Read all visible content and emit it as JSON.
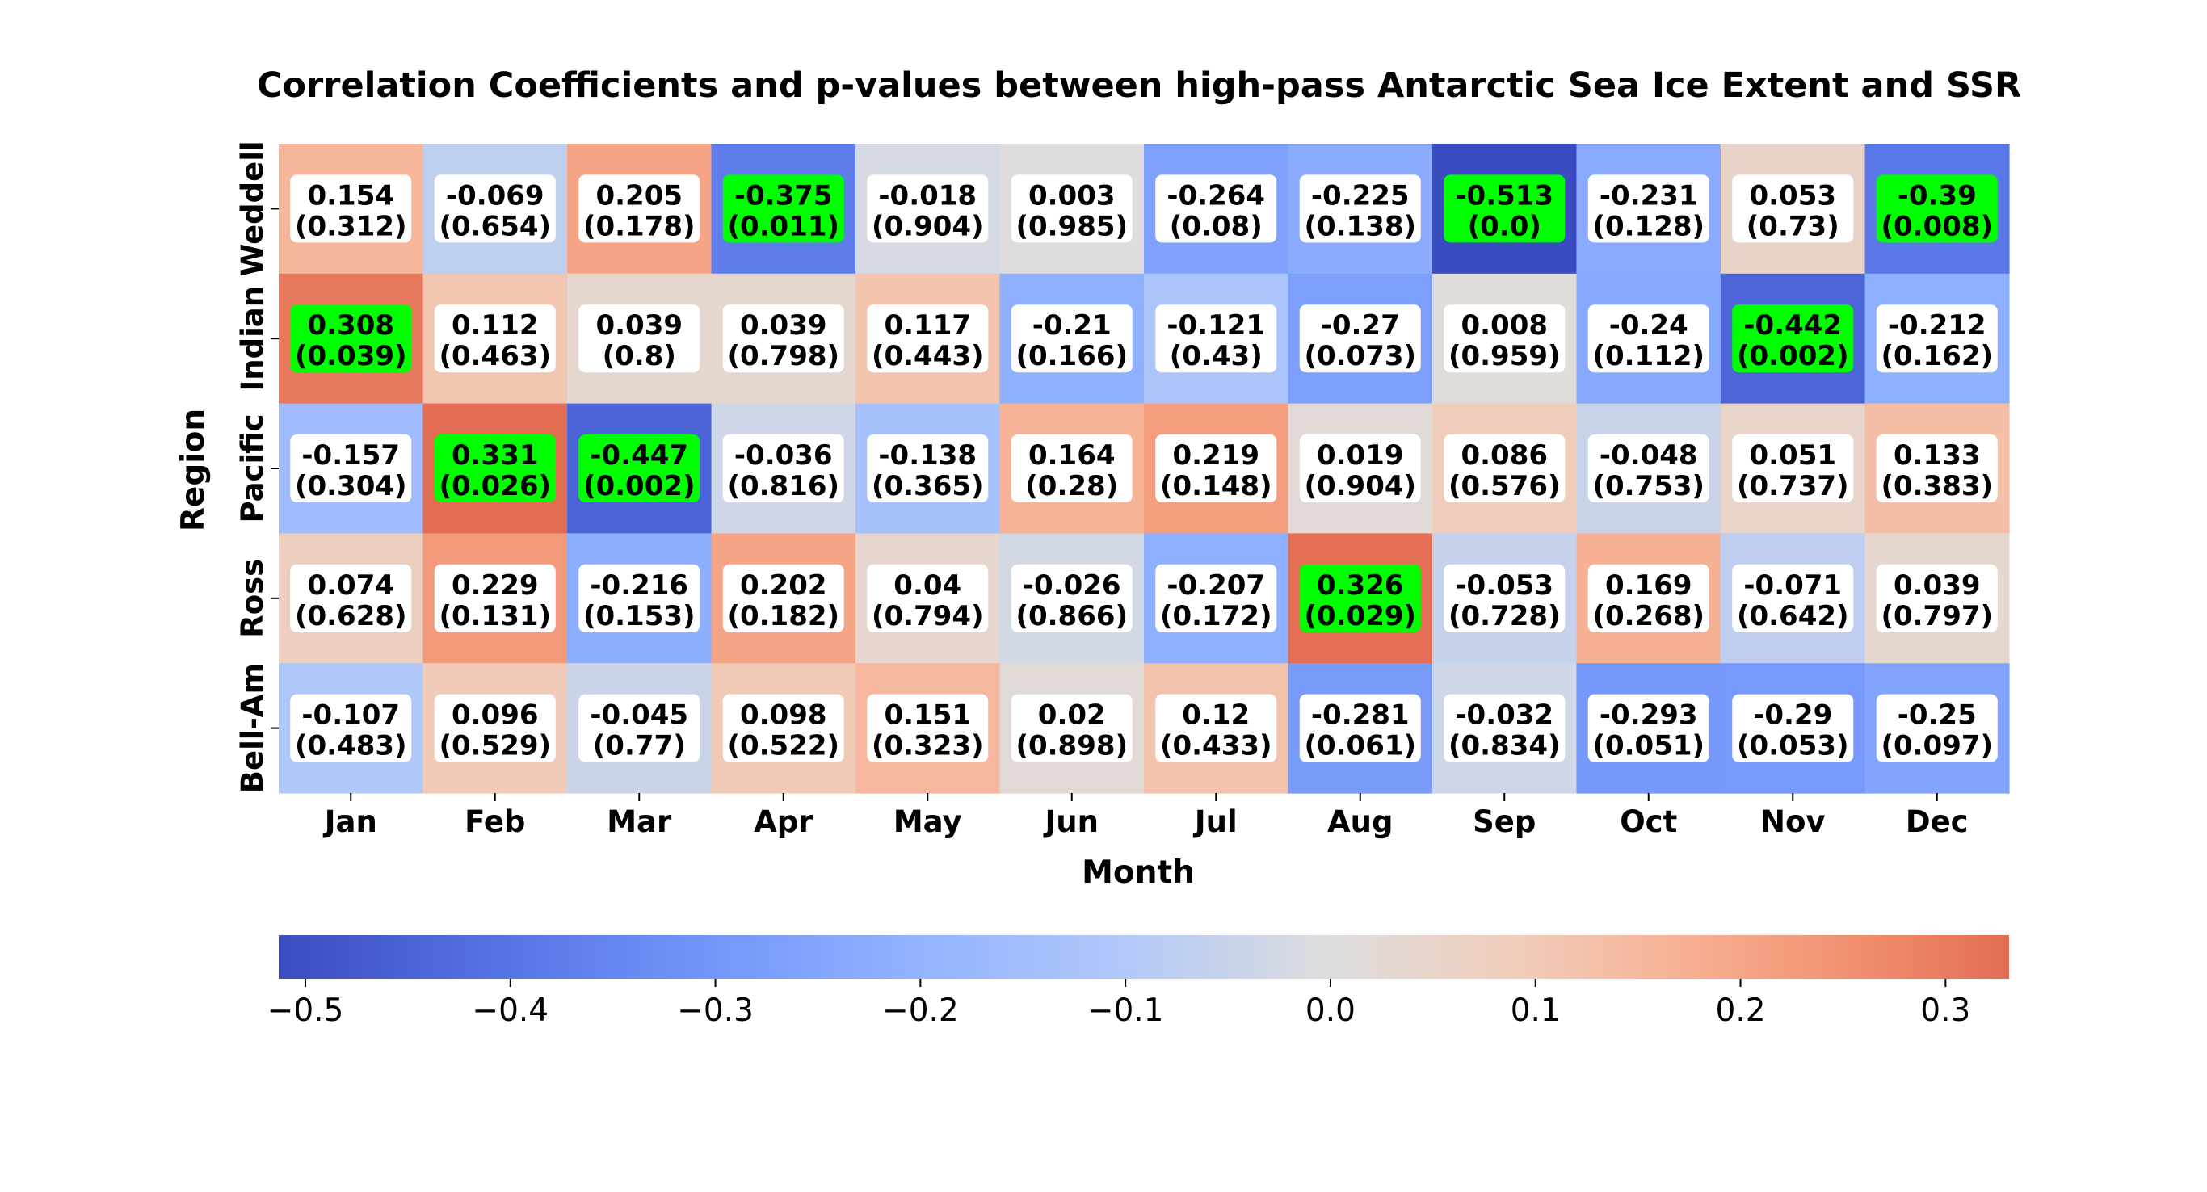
{
  "chart_data": {
    "type": "heatmap",
    "title": "Correlation Coefficients and p-values between high-pass Antarctic Sea Ice Extent and SSR",
    "xlabel": "Month",
    "ylabel": "Region",
    "x_categories": [
      "Jan",
      "Feb",
      "Mar",
      "Apr",
      "May",
      "Jun",
      "Jul",
      "Aug",
      "Sep",
      "Oct",
      "Nov",
      "Dec"
    ],
    "y_categories": [
      "Weddell",
      "Indian",
      "Pacific",
      "Ross",
      "Bell-Am"
    ],
    "values": [
      [
        0.154,
        -0.069,
        0.205,
        -0.375,
        -0.018,
        0.003,
        -0.264,
        -0.225,
        -0.513,
        -0.231,
        0.053,
        -0.39
      ],
      [
        0.308,
        0.112,
        0.039,
        0.039,
        0.117,
        -0.21,
        -0.121,
        -0.27,
        0.008,
        -0.24,
        -0.442,
        -0.212
      ],
      [
        -0.157,
        0.331,
        -0.447,
        -0.036,
        -0.138,
        0.164,
        0.219,
        0.019,
        0.086,
        -0.048,
        0.051,
        0.133
      ],
      [
        0.074,
        0.229,
        -0.216,
        0.202,
        0.04,
        -0.026,
        -0.207,
        0.326,
        -0.053,
        0.169,
        -0.071,
        0.039
      ],
      [
        -0.107,
        0.096,
        -0.045,
        0.098,
        0.151,
        0.02,
        0.12,
        -0.281,
        -0.032,
        -0.293,
        -0.29,
        -0.25
      ]
    ],
    "value_labels": [
      [
        "0.154",
        "-0.069",
        "0.205",
        "-0.375",
        "-0.018",
        "0.003",
        "-0.264",
        "-0.225",
        "-0.513",
        "-0.231",
        "0.053",
        "-0.39"
      ],
      [
        "0.308",
        "0.112",
        "0.039",
        "0.039",
        "0.117",
        "-0.21",
        "-0.121",
        "-0.27",
        "0.008",
        "-0.24",
        "-0.442",
        "-0.212"
      ],
      [
        "-0.157",
        "0.331",
        "-0.447",
        "-0.036",
        "-0.138",
        "0.164",
        "0.219",
        "0.019",
        "0.086",
        "-0.048",
        "0.051",
        "0.133"
      ],
      [
        "0.074",
        "0.229",
        "-0.216",
        "0.202",
        "0.04",
        "-0.026",
        "-0.207",
        "0.326",
        "-0.053",
        "0.169",
        "-0.071",
        "0.039"
      ],
      [
        "-0.107",
        "0.096",
        "-0.045",
        "0.098",
        "0.151",
        "0.02",
        "0.12",
        "-0.281",
        "-0.032",
        "-0.293",
        "-0.29",
        "-0.25"
      ]
    ],
    "p_value_labels": [
      [
        "(0.312)",
        "(0.654)",
        "(0.178)",
        "(0.011)",
        "(0.904)",
        "(0.985)",
        "(0.08)",
        "(0.138)",
        "(0.0)",
        "(0.128)",
        "(0.73)",
        "(0.008)"
      ],
      [
        "(0.039)",
        "(0.463)",
        "(0.8)",
        "(0.798)",
        "(0.443)",
        "(0.166)",
        "(0.43)",
        "(0.073)",
        "(0.959)",
        "(0.112)",
        "(0.002)",
        "(0.162)"
      ],
      [
        "(0.304)",
        "(0.026)",
        "(0.002)",
        "(0.816)",
        "(0.365)",
        "(0.28)",
        "(0.148)",
        "(0.904)",
        "(0.576)",
        "(0.753)",
        "(0.737)",
        "(0.383)"
      ],
      [
        "(0.628)",
        "(0.131)",
        "(0.153)",
        "(0.182)",
        "(0.794)",
        "(0.866)",
        "(0.172)",
        "(0.029)",
        "(0.728)",
        "(0.268)",
        "(0.642)",
        "(0.797)"
      ],
      [
        "(0.483)",
        "(0.529)",
        "(0.77)",
        "(0.522)",
        "(0.323)",
        "(0.898)",
        "(0.433)",
        "(0.061)",
        "(0.834)",
        "(0.051)",
        "(0.053)",
        "(0.097)"
      ]
    ],
    "p_values": [
      [
        0.312,
        0.654,
        0.178,
        0.011,
        0.904,
        0.985,
        0.08,
        0.138,
        0.0,
        0.128,
        0.73,
        0.008
      ],
      [
        0.039,
        0.463,
        0.8,
        0.798,
        0.443,
        0.166,
        0.43,
        0.073,
        0.959,
        0.112,
        0.002,
        0.162
      ],
      [
        0.304,
        0.026,
        0.002,
        0.816,
        0.365,
        0.28,
        0.148,
        0.904,
        0.576,
        0.753,
        0.737,
        0.383
      ],
      [
        0.628,
        0.131,
        0.153,
        0.182,
        0.794,
        0.866,
        0.172,
        0.029,
        0.728,
        0.268,
        0.642,
        0.797
      ],
      [
        0.483,
        0.529,
        0.77,
        0.522,
        0.323,
        0.898,
        0.433,
        0.061,
        0.834,
        0.051,
        0.053,
        0.097
      ]
    ],
    "highlight_threshold_p": 0.05,
    "colorscale": "coolwarm",
    "vmin": -0.513,
    "vmax": 0.331,
    "colorbar": {
      "orientation": "horizontal",
      "ticks": [
        -0.5,
        -0.4,
        -0.3,
        -0.2,
        -0.1,
        0.0,
        0.1,
        0.2,
        0.3
      ],
      "tick_labels": [
        "−0.5",
        "−0.4",
        "−0.3",
        "−0.2",
        "−0.1",
        "0.0",
        "0.1",
        "0.2",
        "0.3"
      ]
    },
    "colors": {
      "highlight": "#00ff00",
      "label_box": "#ffffff",
      "text": "#000000"
    },
    "grid": false
  }
}
